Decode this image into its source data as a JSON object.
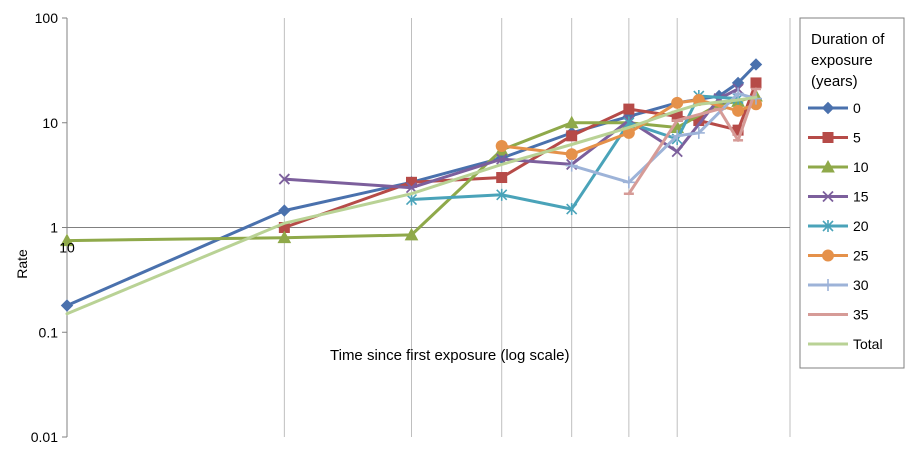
{
  "chart_data": {
    "type": "line",
    "xlabel": "Time since first exposure (log scale)",
    "ylabel": "Rate",
    "x_scale": "log",
    "y_scale": "log",
    "xlim": [
      10,
      90
    ],
    "ylim": [
      0.01,
      100
    ],
    "y_ticks": [
      "100",
      "10",
      "1",
      "0.1",
      "0.01"
    ],
    "x_tick_labels": [
      "10"
    ],
    "x_gridlines": [
      20,
      30,
      40,
      50,
      60,
      70
    ],
    "grid": "vertical",
    "legend": {
      "title": "Duration of exposure (years)",
      "title_lines": [
        "Duration of",
        "exposure",
        "(years)"
      ],
      "position": "right"
    },
    "series": [
      {
        "name": "0",
        "color": "#4a71ad",
        "marker": "diamond",
        "points": [
          [
            10,
            0.18
          ],
          [
            20,
            1.45
          ],
          [
            30,
            2.7
          ],
          [
            40,
            4.6
          ],
          [
            50,
            8.0
          ],
          [
            60,
            11.5
          ],
          [
            70,
            15.5
          ],
          [
            80,
            18.0
          ],
          [
            85,
            24.0
          ],
          [
            90,
            36.0
          ]
        ]
      },
      {
        "name": "5",
        "color": "#b64b48",
        "marker": "square",
        "points": [
          [
            20,
            1.0
          ],
          [
            30,
            2.7
          ],
          [
            40,
            3.0
          ],
          [
            50,
            7.5
          ],
          [
            60,
            13.5
          ],
          [
            70,
            11.5
          ],
          [
            75,
            10.5
          ],
          [
            85,
            8.5
          ],
          [
            90,
            24.0
          ]
        ]
      },
      {
        "name": "10",
        "color": "#8fa94a",
        "marker": "triangle",
        "points": [
          [
            10,
            0.75
          ],
          [
            20,
            0.8
          ],
          [
            30,
            0.85
          ],
          [
            40,
            5.5
          ],
          [
            50,
            10.0
          ],
          [
            60,
            10.0
          ],
          [
            70,
            9.0
          ],
          [
            80,
            15.0
          ],
          [
            85,
            16.0
          ],
          [
            90,
            18.0
          ]
        ]
      },
      {
        "name": "15",
        "color": "#7c5f9c",
        "marker": "x",
        "points": [
          [
            20,
            2.9
          ],
          [
            30,
            2.4
          ],
          [
            40,
            4.5
          ],
          [
            50,
            4.0
          ],
          [
            60,
            10.5
          ],
          [
            70,
            5.3
          ],
          [
            80,
            17.0
          ],
          [
            85,
            21.0
          ]
        ]
      },
      {
        "name": "20",
        "color": "#4aa3b9",
        "marker": "asterisk",
        "points": [
          [
            30,
            1.85
          ],
          [
            40,
            2.05
          ],
          [
            50,
            1.5
          ],
          [
            60,
            10.0
          ],
          [
            70,
            7.0
          ],
          [
            75,
            18.0
          ],
          [
            85,
            17.0
          ]
        ]
      },
      {
        "name": "25",
        "color": "#e5914a",
        "marker": "circle",
        "points": [
          [
            40,
            6.0
          ],
          [
            50,
            5.0
          ],
          [
            60,
            8.0
          ],
          [
            70,
            15.5
          ],
          [
            75,
            16.5
          ],
          [
            85,
            13.0
          ],
          [
            90,
            15.0
          ]
        ]
      },
      {
        "name": "30",
        "color": "#9db3d8",
        "marker": "plus",
        "points": [
          [
            50,
            3.9
          ],
          [
            60,
            2.7
          ],
          [
            70,
            7.5
          ],
          [
            75,
            8.0
          ],
          [
            85,
            19.0
          ],
          [
            90,
            17.0
          ]
        ]
      },
      {
        "name": "35",
        "color": "#d69b97",
        "marker": "dash",
        "points": [
          [
            60,
            2.1
          ],
          [
            70,
            10.5
          ],
          [
            80,
            13.5
          ],
          [
            85,
            6.8
          ],
          [
            90,
            21.0
          ]
        ]
      },
      {
        "name": "Total",
        "color": "#b9d295",
        "marker": "none",
        "points": [
          [
            10,
            0.15
          ],
          [
            20,
            1.1
          ],
          [
            30,
            2.1
          ],
          [
            40,
            4.0
          ],
          [
            50,
            6.2
          ],
          [
            60,
            9.0
          ],
          [
            70,
            13.0
          ],
          [
            75,
            15.0
          ],
          [
            85,
            16.5
          ],
          [
            90,
            17.5
          ]
        ]
      }
    ]
  }
}
